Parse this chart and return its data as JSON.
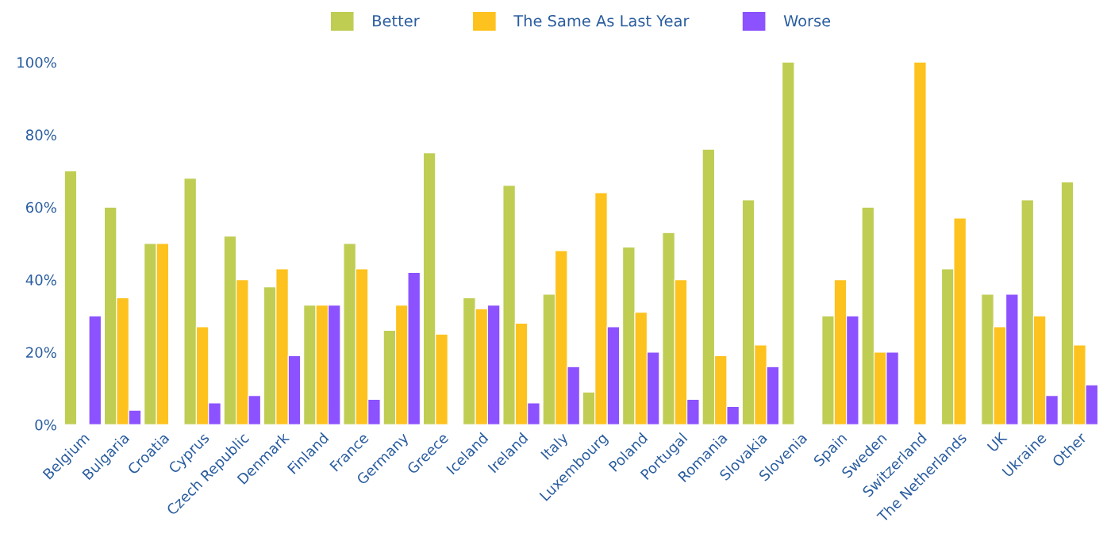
{
  "chart_data": {
    "type": "bar",
    "categories": [
      "Belgium",
      "Bulgaria",
      "Croatia",
      "Cyprus",
      "Czech Republic",
      "Denmark",
      "Finland",
      "France",
      "Germany",
      "Greece",
      "Iceland",
      "Ireland",
      "Italy",
      "Luxembourg",
      "Poland",
      "Portugal",
      "Romania",
      "Slovakia",
      "Slovenia",
      "Spain",
      "Sweden",
      "Switzerland",
      "The Netherlands",
      "UK",
      "Ukraine",
      "Other"
    ],
    "series": [
      {
        "name": "Better",
        "color": "#bfcd53",
        "values": [
          70,
          60,
          50,
          68,
          52,
          38,
          33,
          50,
          26,
          75,
          35,
          66,
          36,
          9,
          49,
          53,
          76,
          62,
          100,
          30,
          60,
          null,
          43,
          36,
          62,
          67
        ]
      },
      {
        "name": "The Same As Last Year",
        "color": "#fdc21e",
        "values": [
          null,
          35,
          50,
          27,
          40,
          43,
          33,
          43,
          33,
          25,
          32,
          28,
          48,
          64,
          31,
          40,
          19,
          22,
          null,
          40,
          20,
          100,
          57,
          27,
          30,
          22
        ]
      },
      {
        "name": "Worse",
        "color": "#8c52ff",
        "values": [
          30,
          4,
          null,
          6,
          8,
          19,
          33,
          7,
          42,
          null,
          33,
          6,
          16,
          27,
          20,
          7,
          5,
          16,
          null,
          30,
          20,
          null,
          null,
          36,
          8,
          11
        ]
      }
    ],
    "ylim": [
      0,
      100
    ],
    "yticks": [
      {
        "value": 0,
        "label": "0%"
      },
      {
        "value": 20,
        "label": "20%"
      },
      {
        "value": 40,
        "label": "40%"
      },
      {
        "value": 60,
        "label": "60%"
      },
      {
        "value": 80,
        "label": "80%"
      },
      {
        "value": 100,
        "label": "100%"
      }
    ],
    "grid": false,
    "legend": "top"
  }
}
